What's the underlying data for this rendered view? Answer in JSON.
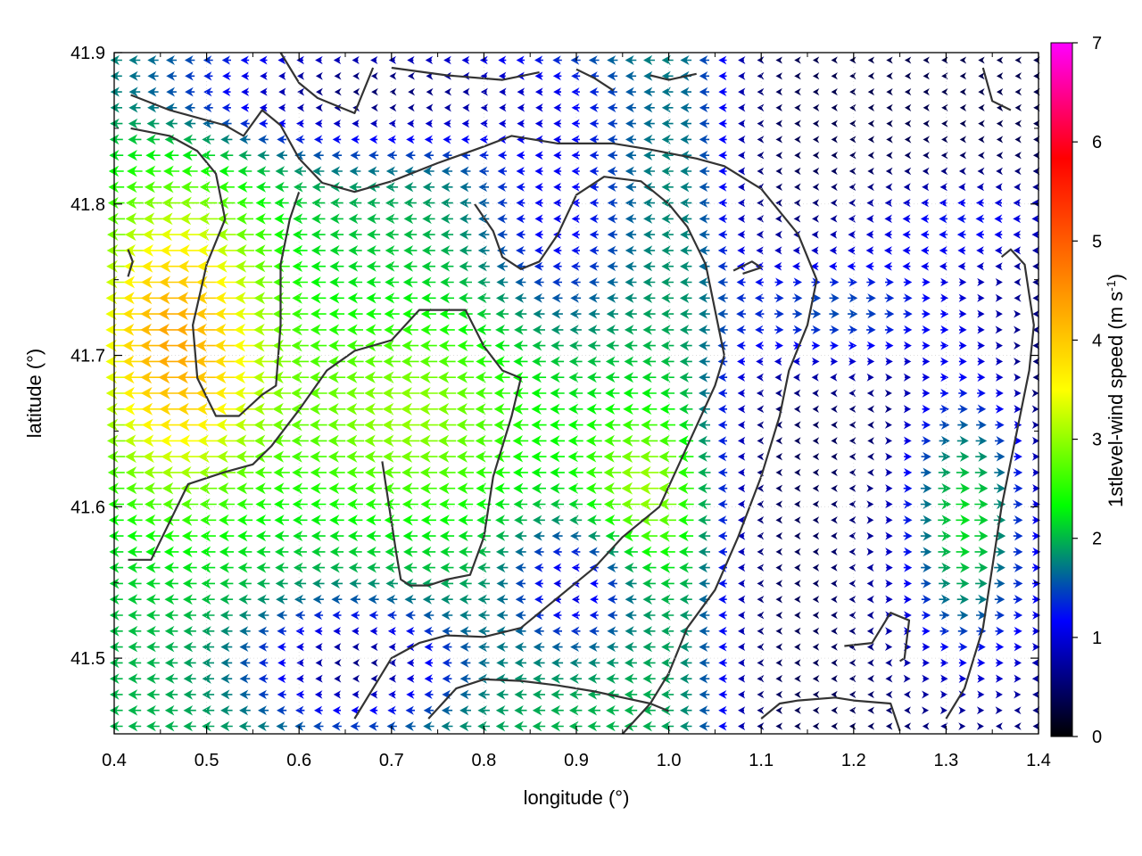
{
  "chart_data": {
    "type": "vector-field",
    "xlabel": "longitude (°)",
    "ylabel": "latitude (°)",
    "xlim": [
      0.4,
      1.4
    ],
    "ylim": [
      41.45,
      41.9
    ],
    "xticks": [
      "0.4",
      "0.5",
      "0.6",
      "0.7",
      "0.8",
      "0.9",
      "1.0",
      "1.1",
      "1.2",
      "1.3",
      "1.4"
    ],
    "yticks": [
      "41.5",
      "41.6",
      "41.7",
      "41.8",
      "41.9"
    ],
    "colorbar": {
      "label": "1stlevel-wind speed (m s",
      "label_sup": "-1",
      "label_tail": ")",
      "range": [
        0,
        7
      ],
      "ticks": [
        "0",
        "1",
        "2",
        "3",
        "4",
        "5",
        "6",
        "7"
      ],
      "colors": [
        "#000000",
        "#0000ff",
        "#00ff00",
        "#ffff00",
        "#ff8000",
        "#ff0000",
        "#ff00ff"
      ]
    },
    "grid": true,
    "wind_field": {
      "direction": "mostly easterly wind (arrows pointing west) over land; westerly wind in south-east",
      "max_speed_region": "west, near lon 0.45 lat 41.7, about 4.5 m/s",
      "calm_region": "north-east and east, below 1 m/s"
    },
    "contours": [
      [
        [
          0.418,
          41.872
        ],
        [
          0.46,
          41.862
        ],
        [
          0.52,
          41.852
        ],
        [
          0.54,
          41.845
        ],
        [
          0.56,
          41.862
        ],
        [
          0.58,
          41.852
        ],
        [
          0.6,
          41.83
        ],
        [
          0.625,
          41.814
        ],
        [
          0.66,
          41.808
        ],
        [
          0.7,
          41.815
        ],
        [
          0.75,
          41.827
        ],
        [
          0.8,
          41.838
        ],
        [
          0.83,
          41.845
        ],
        [
          0.88,
          41.84
        ],
        [
          0.94,
          41.84
        ],
        [
          0.98,
          41.836
        ],
        [
          1.03,
          41.83
        ],
        [
          1.06,
          41.825
        ],
        [
          1.1,
          41.81
        ],
        [
          1.14,
          41.78
        ],
        [
          1.16,
          41.75
        ],
        [
          1.15,
          41.72
        ],
        [
          1.13,
          41.69
        ],
        [
          1.12,
          41.66
        ],
        [
          1.1,
          41.62
        ],
        [
          1.075,
          41.58
        ],
        [
          1.05,
          41.545
        ],
        [
          1.02,
          41.52
        ],
        [
          1.0,
          41.49
        ],
        [
          0.98,
          41.47
        ],
        [
          0.95,
          41.45
        ]
      ],
      [
        [
          0.418,
          41.85
        ],
        [
          0.46,
          41.845
        ],
        [
          0.49,
          41.835
        ],
        [
          0.51,
          41.82
        ],
        [
          0.52,
          41.79
        ],
        [
          0.5,
          41.76
        ],
        [
          0.485,
          41.72
        ],
        [
          0.49,
          41.685
        ],
        [
          0.51,
          41.66
        ],
        [
          0.535,
          41.66
        ],
        [
          0.56,
          41.674
        ],
        [
          0.575,
          41.68
        ],
        [
          0.58,
          41.72
        ],
        [
          0.58,
          41.76
        ],
        [
          0.59,
          41.79
        ],
        [
          0.6,
          41.808
        ]
      ],
      [
        [
          0.415,
          41.77
        ],
        [
          0.42,
          41.762
        ],
        [
          0.415,
          41.752
        ]
      ],
      [
        [
          0.415,
          41.565
        ],
        [
          0.44,
          41.565
        ],
        [
          0.46,
          41.59
        ],
        [
          0.48,
          41.615
        ],
        [
          0.52,
          41.623
        ],
        [
          0.55,
          41.628
        ],
        [
          0.57,
          41.64
        ],
        [
          0.6,
          41.664
        ],
        [
          0.63,
          41.69
        ],
        [
          0.66,
          41.703
        ],
        [
          0.7,
          41.71
        ],
        [
          0.73,
          41.73
        ],
        [
          0.76,
          41.73
        ],
        [
          0.78,
          41.73
        ],
        [
          0.8,
          41.706
        ],
        [
          0.82,
          41.69
        ],
        [
          0.84,
          41.685
        ],
        [
          0.83,
          41.66
        ],
        [
          0.81,
          41.62
        ],
        [
          0.8,
          41.58
        ],
        [
          0.785,
          41.555
        ],
        [
          0.76,
          41.552
        ],
        [
          0.74,
          41.548
        ],
        [
          0.72,
          41.548
        ],
        [
          0.71,
          41.552
        ],
        [
          0.705,
          41.57
        ],
        [
          0.7,
          41.59
        ],
        [
          0.695,
          41.61
        ],
        [
          0.69,
          41.63
        ]
      ],
      [
        [
          0.58,
          41.9
        ],
        [
          0.6,
          41.88
        ],
        [
          0.62,
          41.87
        ],
        [
          0.64,
          41.865
        ],
        [
          0.66,
          41.86
        ],
        [
          0.68,
          41.89
        ]
      ],
      [
        [
          0.7,
          41.89
        ],
        [
          0.76,
          41.885
        ],
        [
          0.82,
          41.882
        ],
        [
          0.86,
          41.887
        ]
      ],
      [
        [
          0.9,
          41.889
        ],
        [
          0.92,
          41.883
        ],
        [
          0.94,
          41.875
        ]
      ],
      [
        [
          0.98,
          41.885
        ],
        [
          1.0,
          41.882
        ],
        [
          1.03,
          41.886
        ]
      ],
      [
        [
          1.07,
          41.756
        ],
        [
          1.09,
          41.762
        ],
        [
          1.1,
          41.758
        ],
        [
          1.08,
          41.754
        ]
      ],
      [
        [
          1.34,
          41.89
        ],
        [
          1.35,
          41.868
        ],
        [
          1.37,
          41.862
        ]
      ],
      [
        [
          1.1,
          41.46
        ],
        [
          1.12,
          41.47
        ],
        [
          1.14,
          41.472
        ],
        [
          1.18,
          41.474
        ],
        [
          1.2,
          41.472
        ],
        [
          1.24,
          41.47
        ],
        [
          1.25,
          41.452
        ]
      ],
      [
        [
          1.19,
          41.508
        ],
        [
          1.22,
          41.51
        ],
        [
          1.24,
          41.53
        ],
        [
          1.26,
          41.525
        ],
        [
          1.255,
          41.5
        ],
        [
          1.25,
          41.498
        ]
      ],
      [
        [
          0.66,
          41.46
        ],
        [
          0.68,
          41.48
        ],
        [
          0.7,
          41.5
        ],
        [
          0.73,
          41.51
        ],
        [
          0.76,
          41.515
        ],
        [
          0.8,
          41.514
        ],
        [
          0.84,
          41.52
        ],
        [
          0.88,
          41.54
        ],
        [
          0.92,
          41.56
        ],
        [
          0.95,
          41.58
        ],
        [
          0.99,
          41.6
        ],
        [
          1.02,
          41.64
        ],
        [
          1.05,
          41.68
        ],
        [
          1.06,
          41.7
        ],
        [
          1.05,
          41.73
        ],
        [
          1.04,
          41.76
        ],
        [
          1.02,
          41.785
        ],
        [
          1.0,
          41.8
        ],
        [
          0.97,
          41.815
        ],
        [
          0.93,
          41.818
        ],
        [
          0.9,
          41.806
        ],
        [
          0.88,
          41.78
        ],
        [
          0.86,
          41.762
        ],
        [
          0.84,
          41.757
        ],
        [
          0.82,
          41.765
        ],
        [
          0.81,
          41.782
        ],
        [
          0.79,
          41.8
        ]
      ],
      [
        [
          0.74,
          41.46
        ],
        [
          0.77,
          41.48
        ],
        [
          0.8,
          41.486
        ],
        [
          0.84,
          41.485
        ],
        [
          0.88,
          41.482
        ],
        [
          0.92,
          41.478
        ],
        [
          0.95,
          41.474
        ],
        [
          0.98,
          41.47
        ],
        [
          1.0,
          41.465
        ]
      ],
      [
        [
          1.3,
          41.46
        ],
        [
          1.32,
          41.48
        ],
        [
          1.34,
          41.52
        ],
        [
          1.35,
          41.56
        ],
        [
          1.36,
          41.6
        ],
        [
          1.37,
          41.63
        ],
        [
          1.38,
          41.66
        ],
        [
          1.39,
          41.69
        ],
        [
          1.395,
          41.72
        ],
        [
          1.39,
          41.74
        ],
        [
          1.385,
          41.76
        ],
        [
          1.37,
          41.77
        ],
        [
          1.36,
          41.765
        ]
      ]
    ]
  }
}
